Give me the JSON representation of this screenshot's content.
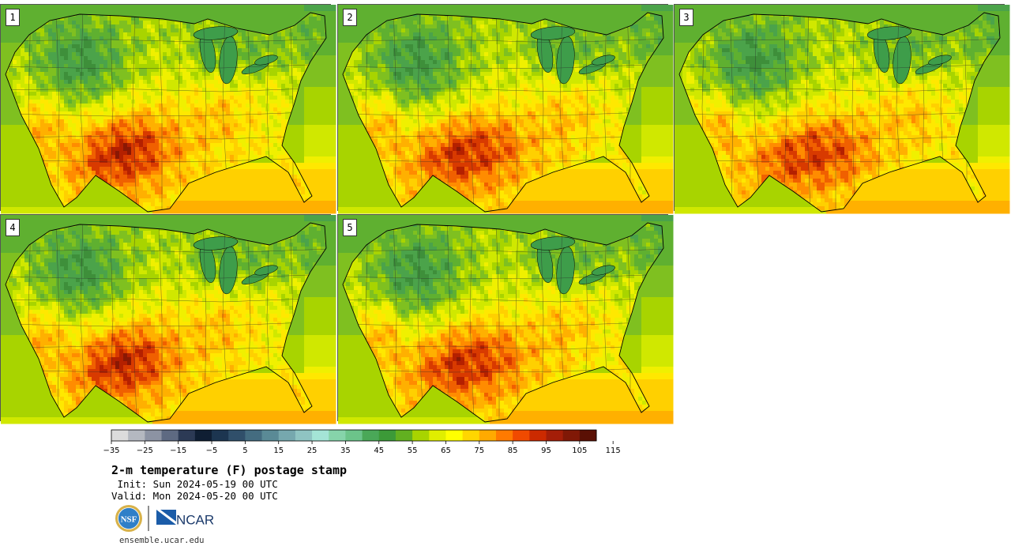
{
  "panels": [
    {
      "label": "1",
      "hot_shift": 0
    },
    {
      "label": "2",
      "hot_shift": 1
    },
    {
      "label": "3",
      "hot_shift": 2
    },
    {
      "label": "4",
      "hot_shift": 0
    },
    {
      "label": "5",
      "hot_shift": 1
    }
  ],
  "colorbar": {
    "ticks": [
      "−35",
      "−25",
      "−15",
      "−5",
      "5",
      "15",
      "25",
      "35",
      "45",
      "55",
      "65",
      "75",
      "85",
      "95",
      "105",
      "115"
    ],
    "colors": [
      "#dcdcdc",
      "#b4b8c0",
      "#8c93a3",
      "#5e6a82",
      "#2c3a55",
      "#0f1e33",
      "#1c3550",
      "#304f6a",
      "#446c80",
      "#5a8a96",
      "#76a8ae",
      "#8fc4c2",
      "#a4e4d6",
      "#86d4aa",
      "#6cc48a",
      "#4aa858",
      "#3c9a38",
      "#62b020",
      "#a8d400",
      "#e0ee00",
      "#ffff00",
      "#ffd600",
      "#ffaa00",
      "#ff7a00",
      "#f04a00",
      "#cc2a00",
      "#a41e08",
      "#801806",
      "#5a1004"
    ]
  },
  "caption": {
    "title": "2-m temperature (F) postage stamp",
    "init": " Init: Sun 2024-05-19 00 UTC",
    "valid": "Valid: Mon 2024-05-20 00 UTC"
  },
  "logos": {
    "nsf": "NSF",
    "ncar": "NCAR"
  },
  "site": "ensemble.ucar.edu"
}
